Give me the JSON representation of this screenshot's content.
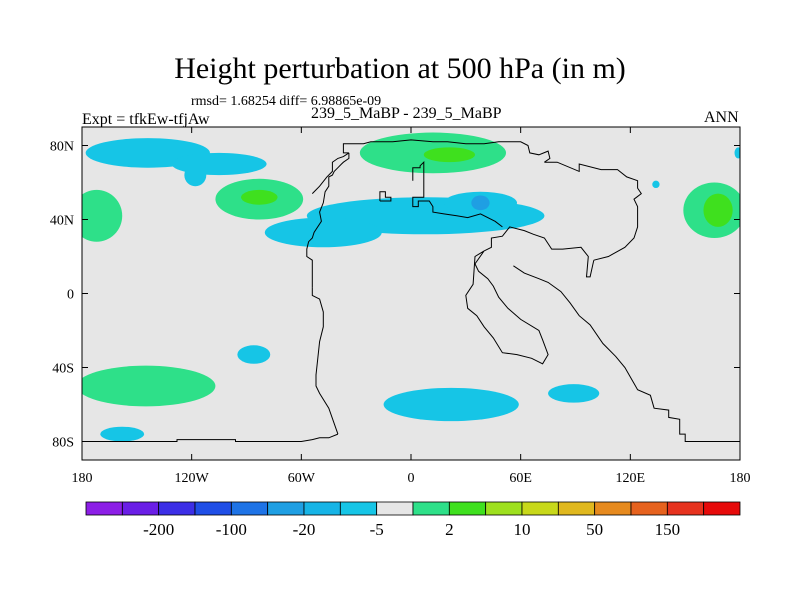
{
  "header": {
    "title": "Height perturbation at 500 hPa (in m)",
    "stats": "rmsd= 1.68254 diff= 6.98865e-09",
    "experiment": "Expt = tfkEw-tfjAw",
    "case": "239_5_MaBP - 239_5_MaBP",
    "season": "ANN"
  },
  "colors": {
    "background": "#e6e6e6",
    "positive_small": "#2ee089",
    "positive_mid": "#3fe01e",
    "negative_small": "#16c5e6",
    "negative_mid": "#1f9fe3",
    "coast": "#000000"
  },
  "chart_data": {
    "type": "heatmap",
    "title": "Height perturbation at 500 hPa (in m)",
    "xlim": [
      -180,
      180
    ],
    "ylim": [
      -90,
      90
    ],
    "x_ticks": [
      {
        "value": -180,
        "label": "180"
      },
      {
        "value": -120,
        "label": "120W"
      },
      {
        "value": -60,
        "label": "60W"
      },
      {
        "value": 0,
        "label": "0"
      },
      {
        "value": 60,
        "label": "60E"
      },
      {
        "value": 120,
        "label": "120E"
      },
      {
        "value": 180,
        "label": "180"
      }
    ],
    "y_ticks": [
      {
        "value": 80,
        "label": "80N"
      },
      {
        "value": 40,
        "label": "40N"
      },
      {
        "value": 0,
        "label": "0"
      },
      {
        "value": -40,
        "label": "40S"
      },
      {
        "value": -80,
        "label": "80S"
      }
    ],
    "colorbar": {
      "colors": [
        "#8c1ee6",
        "#6a1ee6",
        "#3c2ee6",
        "#1f4ee6",
        "#1e73e6",
        "#1f9fe3",
        "#16b4e6",
        "#16c5e6",
        "#e6e6e6",
        "#2ee089",
        "#3fe01e",
        "#9ee01e",
        "#c8d81a",
        "#e0b81e",
        "#e68a1e",
        "#e6621e",
        "#e6321e",
        "#e60a0a"
      ],
      "labels": [
        {
          "after_index": 1,
          "label": "-200"
        },
        {
          "after_index": 3,
          "label": "-100"
        },
        {
          "after_index": 5,
          "label": "-20"
        },
        {
          "after_index": 7,
          "label": "-5"
        },
        {
          "after_index": 9,
          "label": "2"
        },
        {
          "after_index": 11,
          "label": "10"
        },
        {
          "after_index": 13,
          "label": "50"
        },
        {
          "after_index": 15,
          "label": "150"
        }
      ]
    },
    "regions": [
      {
        "lon": -144,
        "lat": 76,
        "rx": 34,
        "ry": 8,
        "color": "#16c5e6"
      },
      {
        "lon": -105,
        "lat": 70,
        "rx": 26,
        "ry": 6,
        "color": "#16c5e6"
      },
      {
        "lon": -118,
        "lat": 64,
        "rx": 6,
        "ry": 6,
        "color": "#16c5e6"
      },
      {
        "lon": -172,
        "lat": 42,
        "rx": 14,
        "ry": 14,
        "color": "#2ee089"
      },
      {
        "lon": -83,
        "lat": 51,
        "rx": 24,
        "ry": 11,
        "color": "#2ee089"
      },
      {
        "lon": -83,
        "lat": 52,
        "rx": 10,
        "ry": 4,
        "color": "#3fe01e"
      },
      {
        "lon": 12,
        "lat": 76,
        "rx": 40,
        "ry": 11,
        "color": "#2ee089"
      },
      {
        "lon": 21,
        "lat": 75,
        "rx": 14,
        "ry": 4,
        "color": "#3fe01e"
      },
      {
        "lon": 8,
        "lat": 42,
        "rx": 65,
        "ry": 10,
        "color": "#16c5e6"
      },
      {
        "lon": -48,
        "lat": 33,
        "rx": 32,
        "ry": 8,
        "color": "#16c5e6"
      },
      {
        "lon": 38,
        "lat": 49,
        "rx": 20,
        "ry": 6,
        "color": "#16c5e6"
      },
      {
        "lon": 38,
        "lat": 49,
        "rx": 5,
        "ry": 4,
        "color": "#1f9fe3"
      },
      {
        "lon": 166,
        "lat": 45,
        "rx": 17,
        "ry": 15,
        "color": "#2ee089"
      },
      {
        "lon": 168,
        "lat": 45,
        "rx": 8,
        "ry": 9,
        "color": "#3fe01e"
      },
      {
        "lon": 179,
        "lat": 76,
        "rx": 2,
        "ry": 3,
        "color": "#16c5e6"
      },
      {
        "lon": 134,
        "lat": 59,
        "rx": 2,
        "ry": 2,
        "color": "#16c5e6"
      },
      {
        "lon": -145,
        "lat": -50,
        "rx": 38,
        "ry": 11,
        "color": "#2ee089"
      },
      {
        "lon": -86,
        "lat": -33,
        "rx": 9,
        "ry": 5,
        "color": "#16c5e6"
      },
      {
        "lon": 22,
        "lat": -60,
        "rx": 37,
        "ry": 9,
        "color": "#16c5e6"
      },
      {
        "lon": 89,
        "lat": -54,
        "rx": 14,
        "ry": 5,
        "color": "#16c5e6"
      },
      {
        "lon": -158,
        "lat": -76,
        "rx": 12,
        "ry": 4,
        "color": "#16c5e6"
      }
    ],
    "coastlines": [
      [
        [
          -180,
          -80
        ],
        [
          -128,
          -80
        ],
        [
          -128,
          -79
        ],
        [
          -96,
          -79
        ],
        [
          -96,
          -80
        ],
        [
          -60,
          -80
        ],
        [
          -54,
          -79
        ],
        [
          -50,
          -78
        ],
        [
          -45,
          -78
        ],
        [
          -40,
          -76
        ]
      ],
      [
        [
          180,
          -80
        ],
        [
          150,
          -80
        ],
        [
          150,
          -76
        ],
        [
          147,
          -76
        ],
        [
          147,
          -68
        ],
        [
          141,
          -67
        ],
        [
          141,
          -63
        ],
        [
          133,
          -62
        ],
        [
          131,
          -55
        ],
        [
          124,
          -52
        ],
        [
          117,
          -40
        ],
        [
          112,
          -34
        ],
        [
          105,
          -27
        ],
        [
          98,
          -17
        ],
        [
          92,
          -12
        ],
        [
          87,
          -5
        ],
        [
          82,
          1
        ],
        [
          75,
          6
        ],
        [
          70,
          8
        ],
        [
          62,
          11
        ],
        [
          56,
          15
        ]
      ],
      [
        [
          -40,
          -76
        ],
        [
          -45,
          -62
        ],
        [
          -50,
          -54
        ],
        [
          -52,
          -50
        ],
        [
          -52,
          -44
        ],
        [
          -51,
          -35
        ],
        [
          -50,
          -26
        ],
        [
          -48,
          -18
        ],
        [
          -48,
          -10
        ],
        [
          -50,
          -3
        ],
        [
          -54,
          -1
        ],
        [
          -54,
          3
        ]
      ],
      [
        [
          -54,
          3
        ],
        [
          -54,
          18
        ],
        [
          -57,
          20
        ],
        [
          -57,
          24
        ],
        [
          -56,
          28
        ],
        [
          -54,
          30
        ],
        [
          -53,
          33
        ],
        [
          -49,
          39
        ],
        [
          -50,
          44
        ],
        [
          -48,
          49
        ],
        [
          -47,
          55
        ],
        [
          -45,
          58
        ],
        [
          -45,
          63
        ],
        [
          -43,
          64
        ],
        [
          -42,
          66
        ],
        [
          -40,
          68
        ],
        [
          -38,
          70
        ],
        [
          -37,
          71
        ],
        [
          -34,
          73
        ],
        [
          -34,
          76
        ]
      ],
      [
        [
          -34,
          76
        ],
        [
          -37,
          76
        ],
        [
          -37,
          81
        ],
        [
          -26,
          81
        ],
        [
          -22,
          82
        ],
        [
          -10,
          82
        ],
        [
          0,
          83
        ],
        [
          12,
          82
        ],
        [
          20,
          82
        ],
        [
          30,
          81
        ],
        [
          40,
          81
        ],
        [
          48,
          82
        ],
        [
          60,
          82
        ],
        [
          64,
          80
        ],
        [
          65,
          76
        ],
        [
          70,
          75
        ],
        [
          75,
          77
        ],
        [
          76,
          73
        ],
        [
          73,
          71
        ]
      ],
      [
        [
          73,
          71
        ],
        [
          80,
          71
        ],
        [
          92,
          66
        ],
        [
          92,
          70
        ],
        [
          104,
          67
        ],
        [
          113,
          67
        ],
        [
          118,
          63
        ],
        [
          124,
          61
        ],
        [
          124,
          57
        ],
        [
          126,
          54
        ],
        [
          122,
          51
        ],
        [
          124,
          47
        ],
        [
          124,
          36
        ],
        [
          122,
          30
        ],
        [
          117,
          25
        ],
        [
          108,
          20
        ],
        [
          100,
          18
        ]
      ],
      [
        [
          40,
          23
        ],
        [
          44,
          25
        ],
        [
          44,
          30
        ],
        [
          50,
          31
        ],
        [
          54,
          36
        ],
        [
          62,
          34
        ],
        [
          67,
          32
        ],
        [
          73,
          30
        ],
        [
          77,
          24
        ],
        [
          83,
          24
        ],
        [
          93,
          25
        ],
        [
          97,
          20
        ],
        [
          96,
          9
        ],
        [
          98,
          9
        ],
        [
          100,
          18
        ]
      ],
      [
        [
          40,
          23
        ],
        [
          35,
          20
        ],
        [
          34,
          5
        ],
        [
          30,
          -1
        ],
        [
          31,
          -8
        ],
        [
          36,
          -12
        ],
        [
          40,
          -18
        ],
        [
          45,
          -24
        ],
        [
          50,
          -32
        ],
        [
          58,
          -33
        ],
        [
          66,
          -35
        ],
        [
          72,
          -38
        ],
        [
          75,
          -33
        ],
        [
          72,
          -25
        ],
        [
          70,
          -20
        ],
        [
          60,
          -14
        ],
        [
          53,
          -8
        ],
        [
          48,
          -2
        ],
        [
          45,
          4
        ],
        [
          42,
          8
        ],
        [
          37,
          12
        ],
        [
          35,
          16
        ],
        [
          40,
          23
        ]
      ],
      [
        [
          -17,
          50
        ],
        [
          -17,
          55
        ],
        [
          -14,
          55
        ],
        [
          -14,
          52
        ],
        [
          -11,
          52
        ],
        [
          -11,
          50
        ],
        [
          -17,
          50
        ]
      ],
      [
        [
          1,
          61
        ],
        [
          1,
          68
        ],
        [
          5,
          68
        ],
        [
          5,
          69
        ],
        [
          7,
          71
        ],
        [
          7,
          52
        ],
        [
          1,
          52
        ],
        [
          1,
          47
        ],
        [
          4,
          47
        ],
        [
          4,
          50
        ],
        [
          10,
          50
        ],
        [
          12,
          47
        ],
        [
          12,
          44
        ],
        [
          18,
          43
        ],
        [
          25,
          42
        ],
        [
          31,
          41
        ],
        [
          38,
          43
        ],
        [
          46,
          39
        ],
        [
          50,
          36
        ]
      ],
      [
        [
          -34,
          76
        ],
        [
          -37,
          74
        ],
        [
          -40,
          73
        ],
        [
          -43,
          71
        ],
        [
          -43,
          66
        ],
        [
          -46,
          63
        ],
        [
          -50,
          58
        ],
        [
          -52,
          56
        ],
        [
          -54,
          54
        ]
      ]
    ]
  }
}
